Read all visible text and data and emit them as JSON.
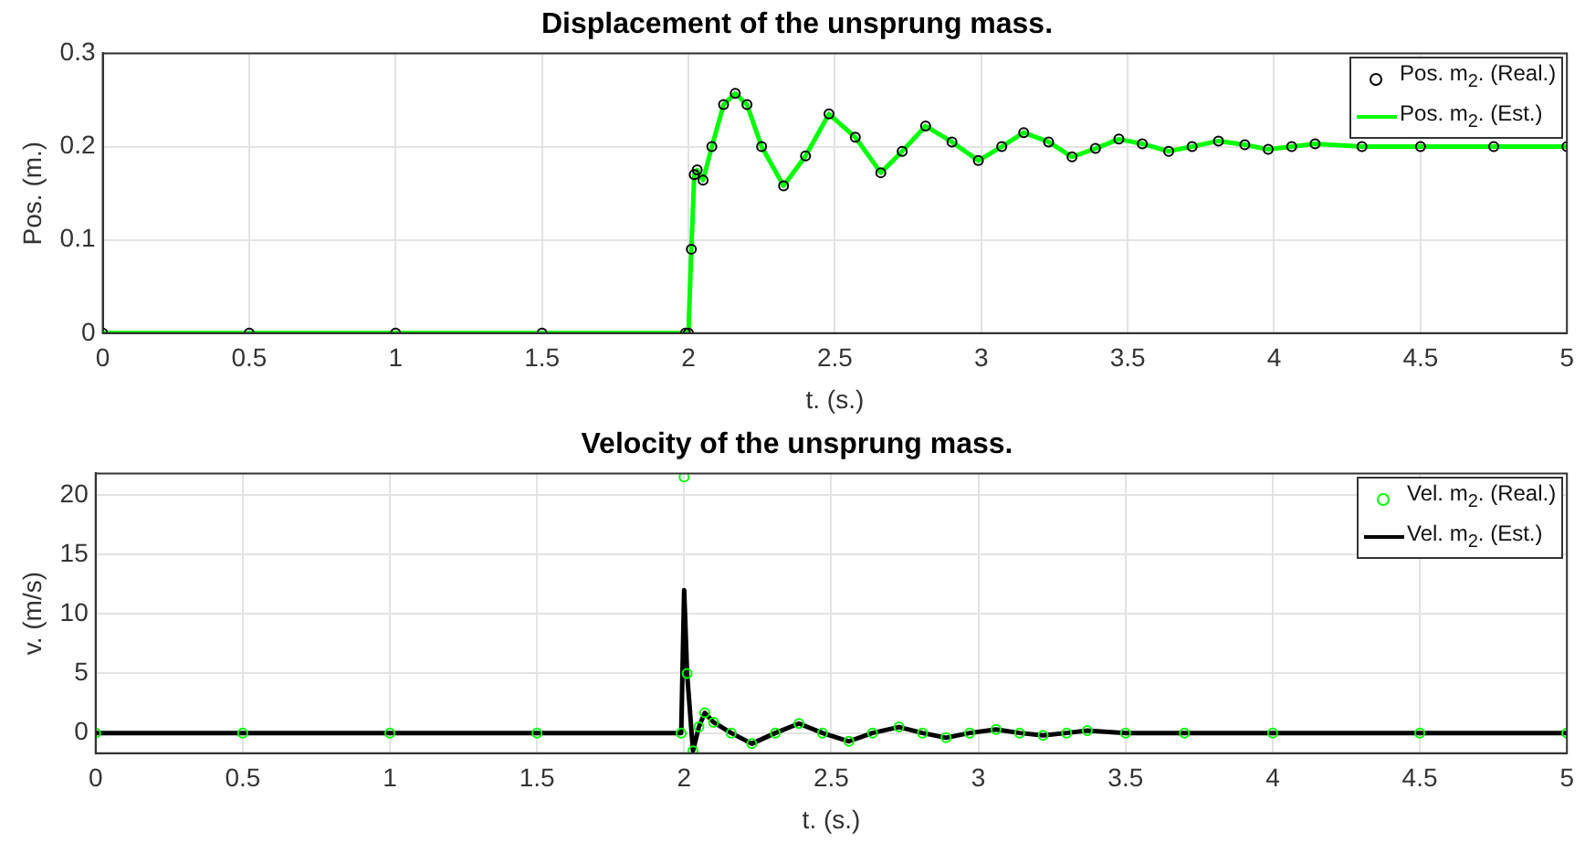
{
  "chart_data": [
    {
      "type": "line",
      "title": "Displacement of the unsprung mass.",
      "xlabel": "t. (s.)",
      "ylabel": "Pos. (m.)",
      "x": [
        0,
        0.5,
        1,
        1.5,
        1.99,
        2.0,
        2.01,
        2.02,
        2.03,
        2.05,
        2.08,
        2.12,
        2.16,
        2.2,
        2.25,
        2.325,
        2.4,
        2.48,
        2.57,
        2.657,
        2.73,
        2.81,
        2.9,
        2.99,
        3.07,
        3.145,
        3.23,
        3.31,
        3.39,
        3.47,
        3.55,
        3.64,
        3.72,
        3.81,
        3.9,
        3.98,
        4.06,
        4.14,
        4.3,
        4.5,
        4.75,
        5
      ],
      "series": [
        {
          "name": "Pos. m$_{2}$. (Real.)",
          "type": "scatter",
          "marker": "circle",
          "color": "#000000",
          "values": [
            0,
            0,
            0,
            0,
            0,
            0,
            0.09,
            0.17,
            0.175,
            0.164,
            0.2,
            0.245,
            0.257,
            0.245,
            0.2,
            0.158,
            0.19,
            0.235,
            0.21,
            0.172,
            0.195,
            0.222,
            0.205,
            0.185,
            0.2,
            0.215,
            0.205,
            0.189,
            0.198,
            0.208,
            0.203,
            0.195,
            0.2,
            0.206,
            0.202,
            0.197,
            0.2,
            0.203,
            0.2,
            0.2,
            0.2,
            0.2
          ]
        },
        {
          "name": "Pos. m$_{2}$. (Est.)",
          "type": "line",
          "color": "#00ff00",
          "values": [
            0,
            0,
            0,
            0,
            0,
            0,
            0.09,
            0.17,
            0.175,
            0.164,
            0.2,
            0.245,
            0.257,
            0.245,
            0.2,
            0.158,
            0.19,
            0.235,
            0.21,
            0.172,
            0.195,
            0.222,
            0.205,
            0.185,
            0.2,
            0.215,
            0.205,
            0.189,
            0.198,
            0.208,
            0.203,
            0.195,
            0.2,
            0.206,
            0.202,
            0.197,
            0.2,
            0.203,
            0.2,
            0.2,
            0.2,
            0.2
          ]
        }
      ],
      "xlim": [
        0,
        5
      ],
      "xticks": [
        0,
        0.5,
        1,
        1.5,
        2,
        2.5,
        3,
        3.5,
        4,
        4.5,
        5
      ],
      "ylim": [
        0,
        0.3
      ],
      "yticks": [
        0,
        0.1,
        0.2,
        0.3
      ],
      "grid": true,
      "legend": "top right"
    },
    {
      "type": "line",
      "title": "Velocity of the unsprung mass.",
      "xlabel": "t. (s.)",
      "ylabel": "v. (m/s)",
      "x": [
        0,
        0.5,
        1,
        1.5,
        1.99,
        2.0,
        2.01,
        2.03,
        2.05,
        2.07,
        2.1,
        2.16,
        2.23,
        2.31,
        2.39,
        2.47,
        2.56,
        2.64,
        2.73,
        2.81,
        2.89,
        2.97,
        3.06,
        3.14,
        3.22,
        3.3,
        3.37,
        3.5,
        3.7,
        4,
        4.5,
        5
      ],
      "series": [
        {
          "name": "Vel. m$_{2}$. (Real.)",
          "type": "scatter",
          "marker": "circle",
          "color": "#00ff00",
          "values": [
            0,
            0,
            0,
            0,
            0,
            21.5,
            5,
            -1.5,
            0.5,
            1.7,
            0.9,
            0,
            -0.9,
            0,
            0.8,
            0,
            -0.7,
            0,
            0.5,
            0,
            -0.4,
            0,
            0.3,
            0,
            -0.2,
            0,
            0.2,
            0,
            0,
            0,
            0,
            0
          ]
        },
        {
          "name": "Vel. m$_{2}$. (Est.)",
          "type": "line",
          "color": "#000000",
          "values": [
            0,
            0,
            0,
            0,
            0,
            12,
            5,
            -1.5,
            0.5,
            1.7,
            0.9,
            0,
            -0.9,
            0,
            0.8,
            0,
            -0.7,
            0,
            0.5,
            0,
            -0.4,
            0,
            0.3,
            0,
            -0.2,
            0,
            0.2,
            0,
            0,
            0,
            0,
            0
          ]
        }
      ],
      "xlim": [
        0,
        5
      ],
      "xticks": [
        0,
        0.5,
        1,
        1.5,
        2,
        2.5,
        3,
        3.5,
        4,
        4.5,
        5
      ],
      "ylim": [
        -1.7,
        21.8
      ],
      "yticks": [
        0,
        5,
        10,
        15,
        20
      ],
      "grid": true,
      "legend": "top right"
    }
  ]
}
